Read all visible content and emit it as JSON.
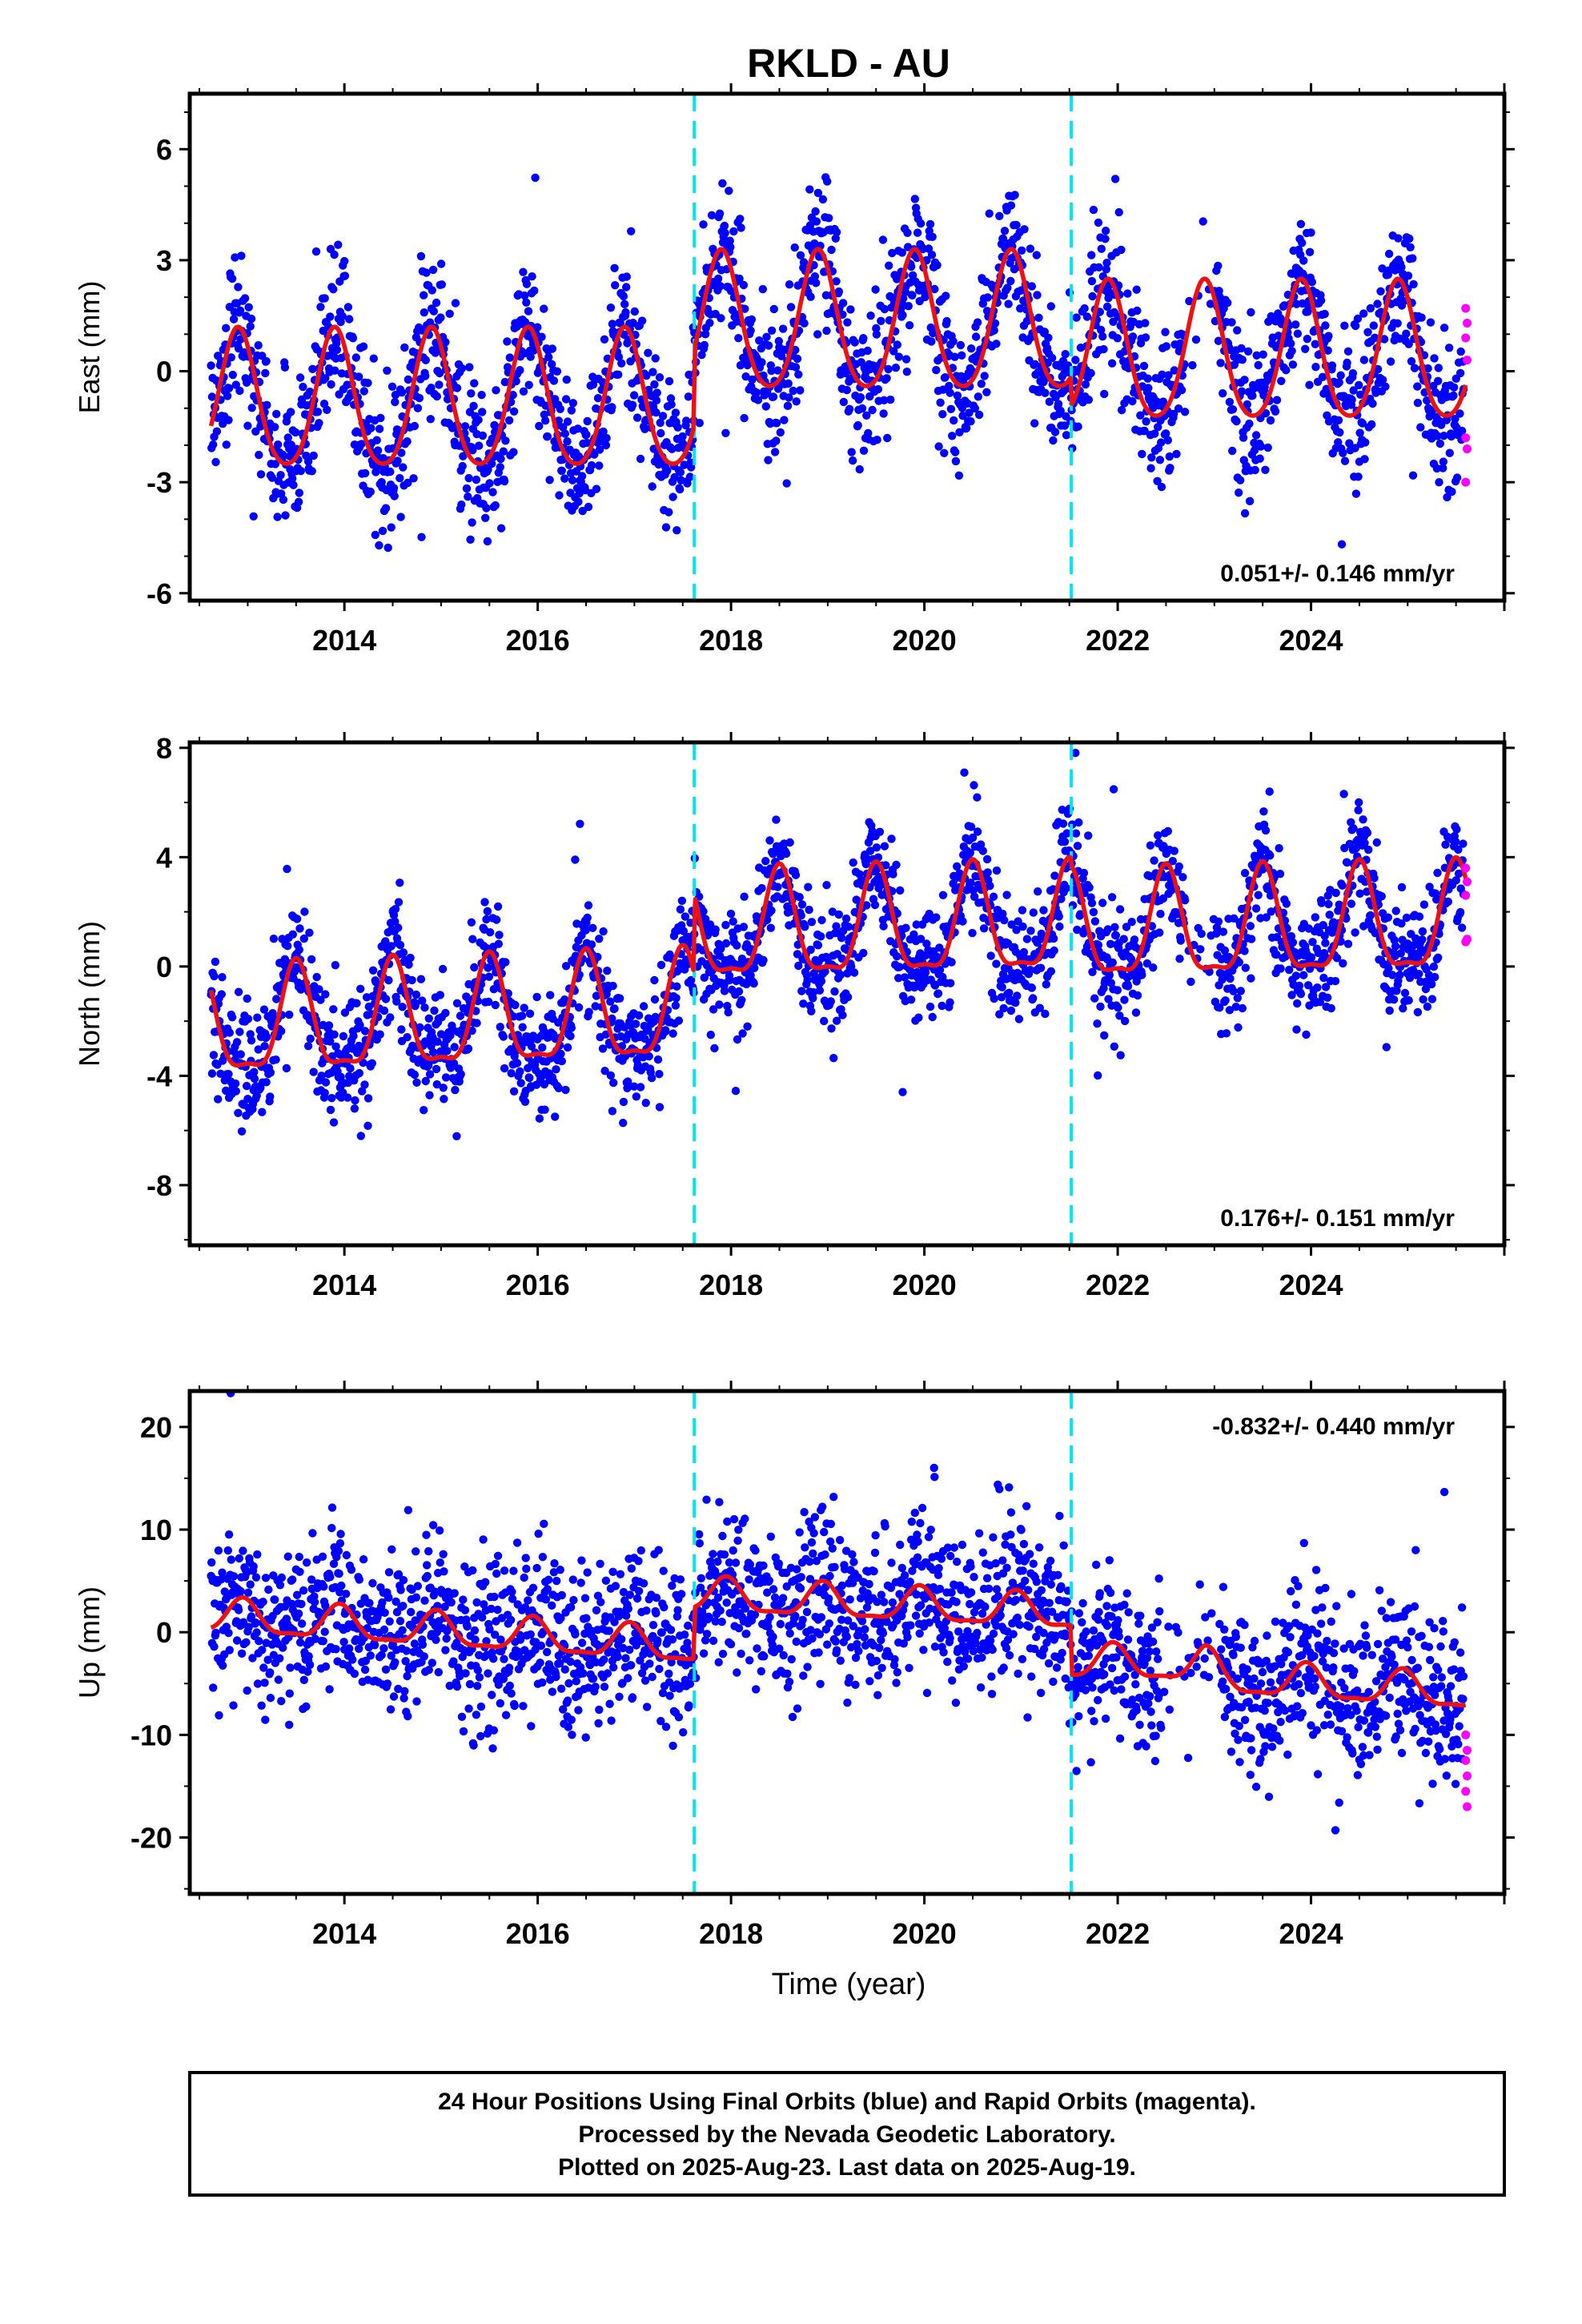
{
  "chart_data": {
    "type": "scatter",
    "title": "RKLD - AU",
    "xlabel": "Time (year)",
    "xlim": [
      2012.4,
      2026.0
    ],
    "x_ticks": [
      2014,
      2016,
      2018,
      2020,
      2022,
      2024
    ],
    "x_tick_labels": [
      "2014",
      "2016",
      "2018",
      "2020",
      "2022",
      "2024"
    ],
    "offset_epochs": [
      2017.62,
      2021.52
    ],
    "series_colors": {
      "final": "#0000ff",
      "rapid": "#ff00ff",
      "model": "#ee1111",
      "offset": "#00e5ee"
    },
    "panels": [
      {
        "id": "east",
        "ylabel": "East (mm)",
        "ylim": [
          -6.2,
          7.5
        ],
        "y_ticks": [
          -6,
          -3,
          0,
          3,
          6
        ],
        "y_tick_labels": [
          "-6",
          "-3",
          "0",
          "3",
          "6"
        ],
        "rate_text": "0.051+/- 0.146 mm/yr",
        "rate_position": "bottom-right",
        "model": {
          "base": [
            [
              2012.6,
              -0.9
            ],
            [
              2017.61,
              -0.9
            ],
            [
              2017.63,
              1.2
            ],
            [
              2021.51,
              1.2
            ],
            [
              2021.53,
              0.4
            ],
            [
              2025.6,
              0.4
            ]
          ],
          "annual_amp": 1.85,
          "annual_peak": 2012.9,
          "semi_amp": 0.25
        },
        "noise_sd": 1.0,
        "rapid_points": [
          1.7,
          1.3,
          0.9,
          0.3,
          -1.8,
          -2.1,
          -3.0
        ]
      },
      {
        "id": "north",
        "ylabel": "North (mm)",
        "ylim": [
          -10.2,
          8.2
        ],
        "y_ticks": [
          -8,
          -4,
          0,
          4,
          8
        ],
        "y_tick_labels": [
          "-8",
          "-4",
          "0",
          "4",
          "8"
        ],
        "rate_text": "0.176+/- 0.151 mm/yr",
        "rate_position": "bottom-right",
        "model": {
          "base": [
            [
              2012.6,
              -2.3
            ],
            [
              2017.61,
              -1.7
            ],
            [
              2017.63,
              1.2
            ],
            [
              2021.51,
              1.5
            ],
            [
              2021.53,
              1.2
            ],
            [
              2025.6,
              1.5
            ]
          ],
          "annual_amp": 1.9,
          "annual_peak": 2013.5,
          "semi_amp": 0.6
        },
        "noise_sd": 1.1,
        "rapid_points": [
          3.6,
          3.1,
          2.6,
          1.0,
          0.9
        ]
      },
      {
        "id": "up",
        "ylabel": "Up (mm)",
        "ylim": [
          -25.5,
          23.5
        ],
        "y_ticks": [
          -20,
          -10,
          0,
          10,
          20
        ],
        "y_tick_labels": [
          "-20",
          "-10",
          "0",
          "10",
          "20"
        ],
        "rate_text": "-0.832+/- 0.440 mm/yr",
        "rate_position": "top-right",
        "model": {
          "base": [
            [
              2012.6,
              1.5
            ],
            [
              2017.61,
              -1.5
            ],
            [
              2017.63,
              3.5
            ],
            [
              2021.51,
              1.8
            ],
            [
              2021.53,
              -3.0
            ],
            [
              2022.9,
              -3.2
            ],
            [
              2023.1,
              -4.5
            ],
            [
              2025.6,
              -6.0
            ]
          ],
          "annual_amp": 1.6,
          "annual_peak": 2012.95,
          "semi_amp": 0.5
        },
        "noise_sd": 4.0,
        "rapid_points": [
          -10.0,
          -11.5,
          -12.5,
          -14.0,
          -15.5,
          -17.0
        ]
      }
    ]
  },
  "footer": {
    "line1": "24 Hour Positions Using Final Orbits (blue) and Rapid Orbits (magenta).",
    "line2": "Processed by the Nevada Geodetic Laboratory.",
    "line3": "Plotted on 2025-Aug-23. Last data on 2025-Aug-19."
  }
}
